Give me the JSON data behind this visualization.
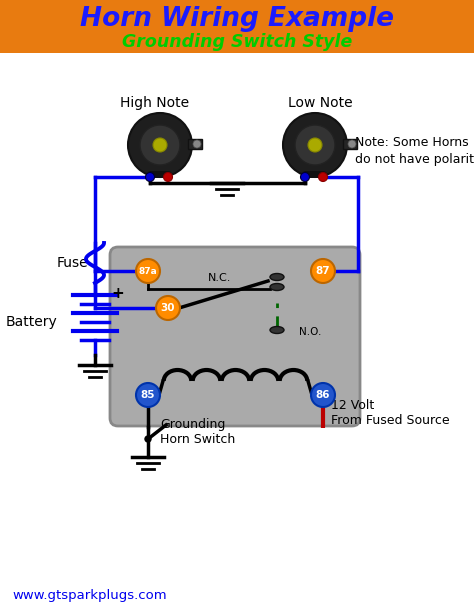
{
  "title1": "Horn Wiring Example",
  "title2": "Grounding Switch Style",
  "title_bg": "#E87B10",
  "title1_color": "#1B1BFF",
  "title2_color": "#00CC00",
  "bg_color": "#FFFFFF",
  "relay_bg": "#AAAAAA",
  "wire_blue": "#0000EE",
  "wire_red": "#BB0000",
  "wire_black": "#000000",
  "wire_green_dash": "#006600",
  "node_orange": "#FF8C00",
  "node_blue": "#2255CC",
  "label_high_note": "High Note",
  "label_low_note": "Low Note",
  "label_87a": "87a",
  "label_87": "87",
  "label_30": "30",
  "label_85": "85",
  "label_86": "86",
  "label_nc": "N.C.",
  "label_no": "N.O.",
  "label_fuse": "Fuse",
  "label_battery": "Battery",
  "label_grounding": "Grounding\nHorn Switch",
  "label_12v": "12 Volt\nFrom Fused Source",
  "label_note": "Note: Some Horns\ndo not have polarity.",
  "label_website": "www.gtsparkplugs.com",
  "website_color": "#0000EE"
}
